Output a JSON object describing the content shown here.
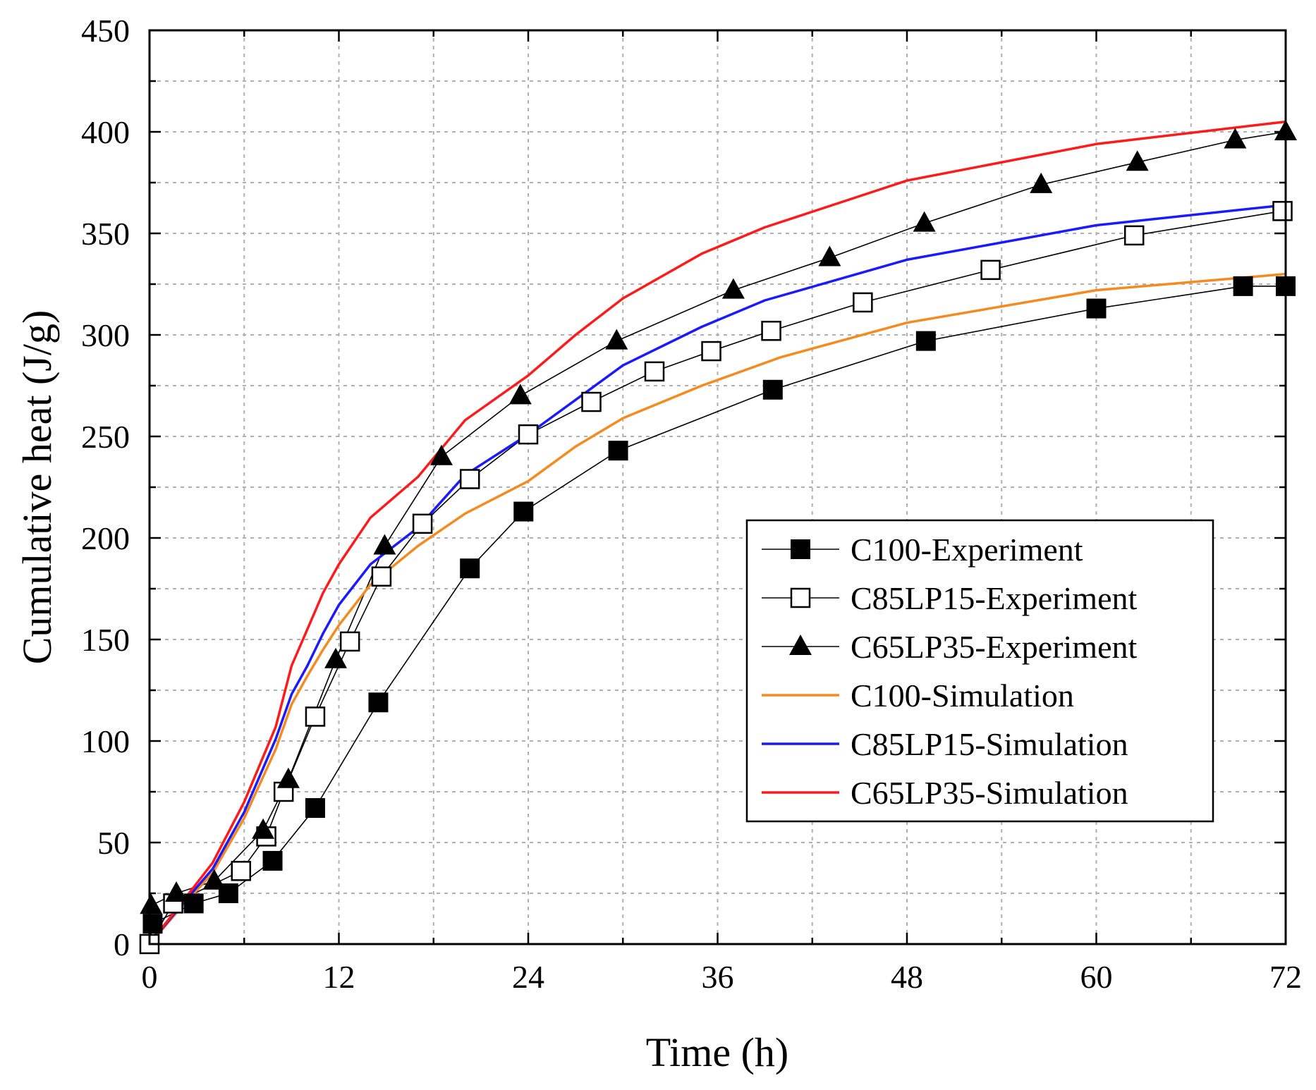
{
  "chart_data": {
    "type": "line",
    "xlabel": "Time (h)",
    "ylabel": "Cumulative heat (J/g)",
    "xlim": [
      0,
      72
    ],
    "ylim": [
      0,
      450
    ],
    "xticks": [
      0,
      12,
      24,
      36,
      48,
      60,
      72
    ],
    "yticks": [
      0,
      50,
      100,
      150,
      200,
      250,
      300,
      350,
      400,
      450
    ],
    "grid": true,
    "legend_position": "lower-right",
    "series": [
      {
        "name": "C100-Experiment",
        "kind": "experiment",
        "marker": "filled-square",
        "color": "#000000",
        "x": [
          0,
          0.2,
          2.8,
          5.0,
          7.8,
          10.5,
          14.5,
          20.3,
          23.7,
          29.7,
          39.5,
          49.2,
          60.0,
          69.3,
          72.0
        ],
        "y": [
          0,
          10,
          20,
          25,
          41,
          67,
          119,
          185,
          213,
          243,
          273,
          297,
          313,
          324,
          324
        ]
      },
      {
        "name": "C85LP15-Experiment",
        "kind": "experiment",
        "marker": "open-square",
        "color": "#000000",
        "x": [
          0,
          1.5,
          5.8,
          7.4,
          8.5,
          10.5,
          12.7,
          14.7,
          17.3,
          20.3,
          24.0,
          28.0,
          32.0,
          35.6,
          39.4,
          45.2,
          53.3,
          62.4,
          71.8
        ],
        "y": [
          0,
          20,
          36,
          53,
          75,
          112,
          149,
          181,
          207,
          229,
          251,
          267,
          282,
          292,
          302,
          316,
          332,
          349,
          361
        ]
      },
      {
        "name": "C65LP35-Experiment",
        "kind": "experiment",
        "marker": "filled-triangle",
        "color": "#000000",
        "x": [
          0.1,
          1.7,
          4.1,
          7.2,
          8.8,
          11.8,
          14.9,
          18.5,
          23.5,
          29.6,
          37.0,
          43.1,
          49.1,
          56.5,
          62.6,
          68.8,
          72.0
        ],
        "y": [
          19,
          25,
          31,
          56,
          81,
          140,
          196,
          240,
          270,
          297,
          322,
          338,
          355,
          374,
          385,
          396,
          400
        ]
      },
      {
        "name": "C100-Simulation",
        "kind": "simulation",
        "color": "#f58a1f",
        "x": [
          0,
          2,
          4,
          6,
          8,
          9,
          10,
          11,
          12,
          14,
          17,
          20,
          24,
          27,
          30,
          35,
          40,
          48,
          60,
          72
        ],
        "y": [
          0,
          18,
          35,
          62,
          96,
          118,
          132,
          145,
          157,
          177,
          196,
          212,
          228,
          245,
          259,
          275,
          289,
          306,
          322,
          330
        ]
      },
      {
        "name": "C85LP15-Simulation",
        "kind": "simulation",
        "color": "#1a1aff",
        "x": [
          0,
          2,
          4,
          6,
          8,
          9,
          10,
          11,
          12,
          14,
          17,
          20,
          24,
          27,
          30,
          35,
          39,
          48,
          60,
          72
        ],
        "y": [
          0,
          19,
          37,
          65,
          101,
          123,
          137,
          153,
          167,
          187,
          205,
          231,
          251,
          268,
          285,
          304,
          317,
          337,
          354,
          364
        ]
      },
      {
        "name": "C65LP35-Simulation",
        "kind": "simulation",
        "color": "#ff1a1a",
        "x": [
          0,
          2,
          4,
          6,
          8,
          9,
          10,
          11,
          12,
          14,
          17,
          20,
          24,
          27,
          30,
          35,
          39,
          48,
          60,
          72
        ],
        "y": [
          0,
          20,
          40,
          70,
          107,
          137,
          155,
          173,
          187,
          210,
          230,
          258,
          280,
          300,
          318,
          340,
          353,
          376,
          394,
          405
        ]
      }
    ]
  }
}
